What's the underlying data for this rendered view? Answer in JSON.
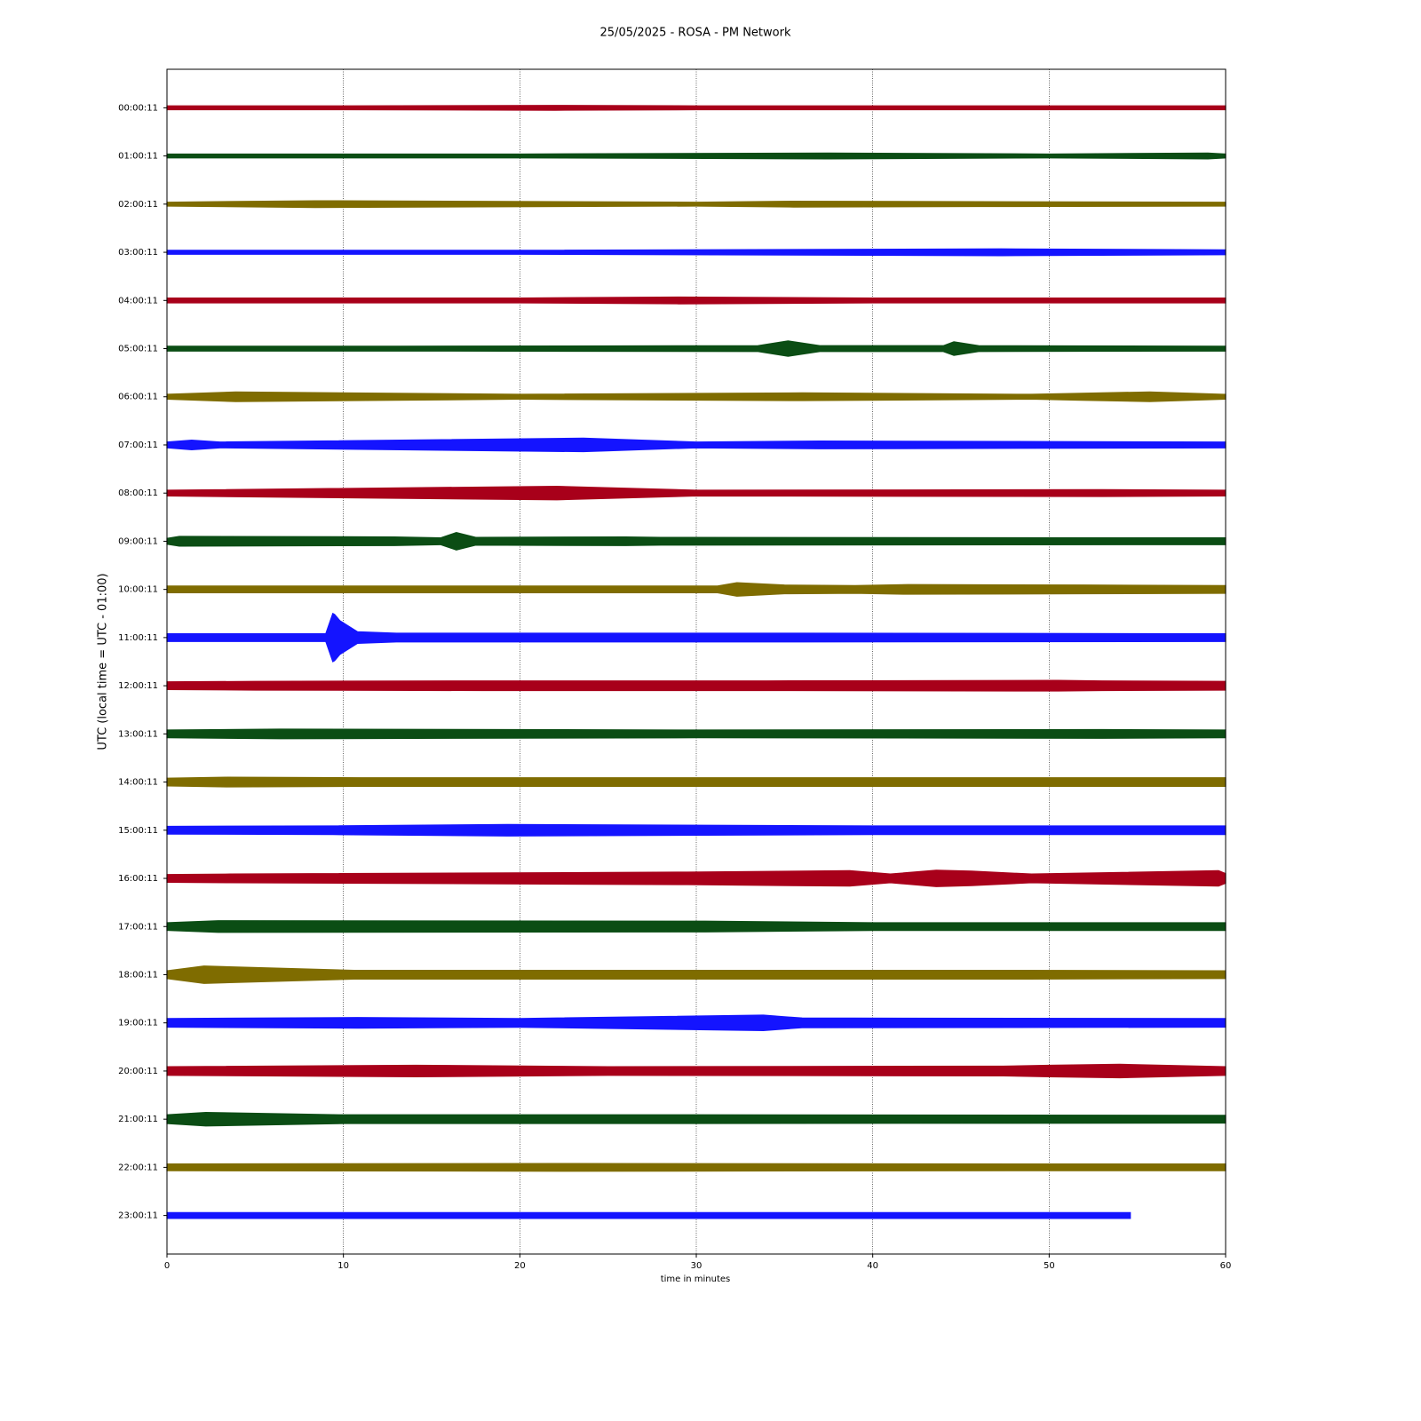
{
  "chart_data": {
    "type": "helicorder",
    "title": "25/05/2025 - ROSA - PM Network",
    "xlabel": "time in minutes",
    "ylabel": "UTC (local time = UTC - 01:00)",
    "xlim": [
      0,
      60
    ],
    "xticks": [
      0,
      10,
      20,
      30,
      40,
      50,
      60
    ],
    "ylim": [
      -50,
      50
    ],
    "grid": true,
    "series": [
      {
        "name": "00:00:11",
        "color": "#a8001a",
        "x": [
          0,
          10,
          22,
          30,
          45,
          60
        ],
        "values": [
          4,
          4,
          5,
          4,
          4,
          4
        ]
      },
      {
        "name": "01:00:11",
        "color": "#0b4d14",
        "x": [
          0,
          20,
          37.5,
          50,
          59,
          60
        ],
        "values": [
          4,
          4,
          6,
          4,
          6,
          4
        ]
      },
      {
        "name": "02:00:11",
        "color": "#7f6c00",
        "x": [
          0,
          8.4,
          30,
          35.5,
          46,
          60
        ],
        "values": [
          4,
          7,
          4,
          6,
          5,
          4
        ]
      },
      {
        "name": "03:00:11",
        "color": "#1414ff",
        "x": [
          0,
          20,
          47.3,
          54.5,
          60
        ],
        "values": [
          4,
          4,
          7,
          6,
          5
        ]
      },
      {
        "name": "04:00:11",
        "color": "#a8001a",
        "x": [
          0,
          20,
          29,
          40,
          60
        ],
        "values": [
          5,
          5,
          7,
          5,
          5
        ]
      },
      {
        "name": "05:00:11",
        "color": "#0b4d14",
        "x": [
          0,
          13,
          33.5,
          35.2,
          37,
          44,
          44.6,
          46,
          60
        ],
        "values": [
          5,
          5,
          6,
          16,
          6,
          6,
          14,
          6,
          5
        ]
      },
      {
        "name": "06:00:11",
        "color": "#7f6c00",
        "x": [
          0,
          3.9,
          20,
          36,
          49,
          51.5,
          55.7,
          60
        ],
        "values": [
          5,
          10,
          5,
          8,
          5,
          7,
          10,
          5
        ]
      },
      {
        "name": "07:00:11",
        "color": "#1414ff",
        "x": [
          0,
          1.4,
          3,
          23.6,
          30,
          37,
          60
        ],
        "values": [
          6,
          10,
          6,
          14,
          6,
          8,
          6
        ]
      },
      {
        "name": "08:00:11",
        "color": "#a8001a",
        "x": [
          0,
          22.1,
          30,
          53,
          60
        ],
        "values": [
          6,
          14,
          6,
          7,
          6
        ]
      },
      {
        "name": "09:00:11",
        "color": "#0b4d14",
        "x": [
          0,
          0.7,
          12.9,
          15.5,
          16.4,
          17.5,
          26,
          28,
          60
        ],
        "values": [
          6,
          10,
          9,
          7,
          18,
          8,
          9,
          8,
          7
        ]
      },
      {
        "name": "10:00:11",
        "color": "#7f6c00",
        "x": [
          0,
          31.2,
          32.3,
          35,
          39,
          42,
          52,
          60
        ],
        "values": [
          7,
          7,
          14,
          9,
          8,
          10,
          9,
          8
        ]
      },
      {
        "name": "11:00:11",
        "color": "#1414ff",
        "x": [
          0,
          9,
          9.4,
          9.5,
          9.8,
          10.8,
          13,
          36,
          60
        ],
        "values": [
          8,
          8,
          50,
          48,
          35,
          12,
          9,
          9,
          8
        ]
      },
      {
        "name": "12:00:11",
        "color": "#a8001a",
        "x": [
          0,
          5,
          17.9,
          34,
          50.5,
          53,
          60
        ],
        "values": [
          8,
          9,
          10,
          10,
          11,
          10,
          9
        ]
      },
      {
        "name": "13:00:11",
        "color": "#0b4d14",
        "x": [
          0,
          6.4,
          30,
          53,
          60
        ],
        "values": [
          8,
          10,
          8,
          9,
          8
        ]
      },
      {
        "name": "14:00:11",
        "color": "#7f6c00",
        "x": [
          0,
          3.4,
          11,
          35,
          56,
          60
        ],
        "values": [
          8,
          10,
          9,
          9,
          9,
          9
        ]
      },
      {
        "name": "15:00:11",
        "color": "#1414ff",
        "x": [
          0,
          9.4,
          19.3,
          40,
          55.9,
          60
        ],
        "values": [
          8,
          9,
          12,
          9,
          9,
          9
        ]
      },
      {
        "name": "16:00:11",
        "color": "#a8001a",
        "x": [
          0,
          3.6,
          29.5,
          38.7,
          41,
          43.6,
          45.6,
          49,
          59.6,
          60
        ],
        "values": [
          8,
          9,
          13,
          16,
          9,
          17,
          15,
          9,
          16,
          10
        ]
      },
      {
        "name": "17:00:11",
        "color": "#0b4d14",
        "x": [
          0,
          2.9,
          30.5,
          40,
          60
        ],
        "values": [
          8,
          12,
          11,
          8,
          8
        ]
      },
      {
        "name": "18:00:11",
        "color": "#7f6c00",
        "x": [
          0,
          2.1,
          10.6,
          35,
          48.8,
          60
        ],
        "values": [
          8,
          18,
          9,
          9,
          9,
          8
        ]
      },
      {
        "name": "19:00:11",
        "color": "#1414ff",
        "x": [
          0,
          10.8,
          20,
          33.8,
          36,
          60
        ],
        "values": [
          9,
          11,
          9,
          16,
          10,
          9
        ]
      },
      {
        "name": "20:00:11",
        "color": "#a8001a",
        "x": [
          0,
          14.1,
          25,
          47.4,
          50,
          54,
          60
        ],
        "values": [
          9,
          12,
          9,
          10,
          12,
          14,
          9
        ]
      },
      {
        "name": "21:00:11",
        "color": "#0b4d14",
        "x": [
          0,
          2.2,
          10,
          30,
          60
        ],
        "values": [
          9,
          14,
          9,
          9,
          8
        ]
      },
      {
        "name": "22:00:11",
        "color": "#7f6c00",
        "x": [
          0,
          22.4,
          48,
          60
        ],
        "values": [
          7,
          8,
          7,
          7
        ]
      },
      {
        "name": "23:00:11",
        "color": "#1414ff",
        "x": [
          0,
          30,
          54.6
        ],
        "values": [
          6,
          6,
          6
        ]
      }
    ]
  }
}
